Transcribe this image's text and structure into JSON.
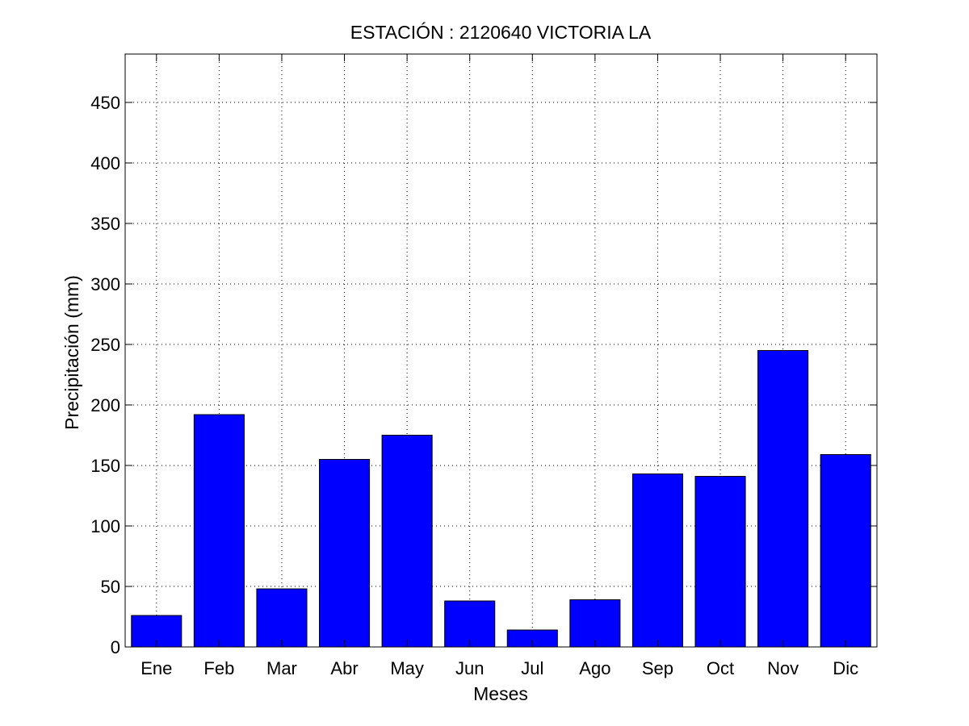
{
  "chart_data": {
    "type": "bar",
    "title": "ESTACIÓN :  2120640  VICTORIA LA",
    "xlabel": "Meses",
    "ylabel": "Precipitación (mm)",
    "categories": [
      "Ene",
      "Feb",
      "Mar",
      "Abr",
      "May",
      "Jun",
      "Jul",
      "Ago",
      "Sep",
      "Oct",
      "Nov",
      "Dic"
    ],
    "values": [
      26,
      192,
      48,
      155,
      175,
      38,
      14,
      39,
      143,
      141,
      245,
      159
    ],
    "ylim": [
      0,
      490
    ],
    "yticks": [
      0,
      50,
      100,
      150,
      200,
      250,
      300,
      350,
      400,
      450
    ],
    "grid": true,
    "legend": "none",
    "colors": {
      "bar_fill": "#0000ff",
      "bar_stroke": "#000000",
      "grid": "#000000",
      "axes": "#000000"
    }
  }
}
